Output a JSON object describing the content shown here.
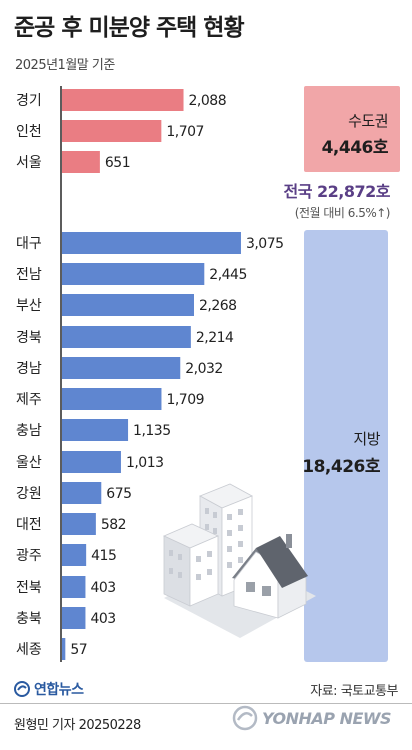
{
  "title": "준공 후 미분양 주택 현황",
  "subtitle": "2025년1월말 기준",
  "colors": {
    "capital_bar": "#ea7d83",
    "local_bar": "#5f86d0",
    "axis": "#333333",
    "national_text": "#5a3f86"
  },
  "capital": {
    "name": "수도권",
    "total": "4,446호"
  },
  "local": {
    "name": "지방",
    "total": "18,426호"
  },
  "national": {
    "total": "전국 22,872호",
    "change": "(전월 대비 6.5%↑)"
  },
  "chart_data": {
    "type": "bar",
    "orientation": "horizontal",
    "unit": "호",
    "categories": [
      "경기",
      "인천",
      "서울",
      "대구",
      "전남",
      "부산",
      "경북",
      "경남",
      "제주",
      "충남",
      "울산",
      "강원",
      "대전",
      "광주",
      "전북",
      "충북",
      "세종"
    ],
    "values": [
      2088,
      1707,
      651,
      3075,
      2445,
      2268,
      2214,
      2032,
      1709,
      1135,
      1013,
      675,
      582,
      415,
      403,
      403,
      57
    ],
    "value_labels": [
      "2,088",
      "1,707",
      "651",
      "3,075",
      "2,445",
      "2,268",
      "2,214",
      "2,032",
      "1,709",
      "1,135",
      "1,013",
      "675",
      "582",
      "415",
      "403",
      "403",
      "57"
    ],
    "groups": [
      "capital",
      "capital",
      "capital",
      "local",
      "local",
      "local",
      "local",
      "local",
      "local",
      "local",
      "local",
      "local",
      "local",
      "local",
      "local",
      "local",
      "local"
    ]
  },
  "footer": {
    "logo": "연합뉴스",
    "source": "자료: 국토교통부",
    "credit": "원형민 기자  20250228",
    "watermark": "YONHAP NEWS"
  }
}
